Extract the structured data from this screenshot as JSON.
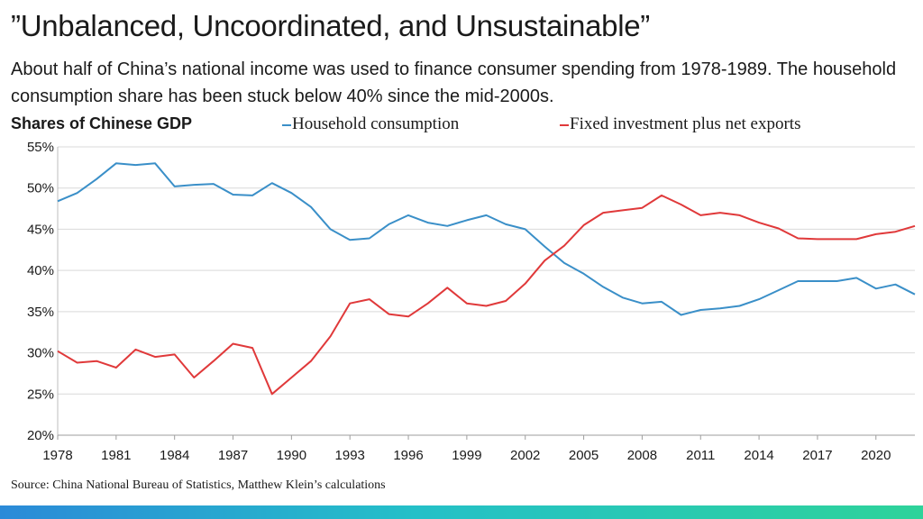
{
  "header": {
    "title": "”Unbalanced, Uncoordinated, and Unsustainable”",
    "subtitle": "About half of China’s national income was used to finance consumer spending from 1978-1989. The household consumption share has been stuck below 40% since the mid-2000s."
  },
  "panel_label": "Shares of Chinese GDP",
  "source": "Source: China National Bureau of Statistics, Matthew Klein’s calculations",
  "colors": {
    "household": "#3a8fc8",
    "investment": "#e0393a",
    "grid": "#d9d9d9",
    "accent_bar_start": "#2b8ad8",
    "accent_bar_end": "#2ed39a"
  },
  "chart_data": {
    "type": "line",
    "title": "Shares of Chinese GDP",
    "xlabel": "",
    "ylabel": "",
    "xlim": [
      1978,
      2022
    ],
    "ylim": [
      20,
      55
    ],
    "grid": true,
    "legend_position": "top",
    "x_ticks": [
      1978,
      1981,
      1984,
      1987,
      1990,
      1993,
      1996,
      1999,
      2002,
      2005,
      2008,
      2011,
      2014,
      2017,
      2020
    ],
    "y_ticks": [
      "20%",
      "25%",
      "30%",
      "35%",
      "40%",
      "45%",
      "50%",
      "55%"
    ],
    "y_tick_values": [
      20,
      25,
      30,
      35,
      40,
      45,
      50,
      55
    ],
    "x": [
      1978,
      1979,
      1980,
      1981,
      1982,
      1983,
      1984,
      1985,
      1986,
      1987,
      1988,
      1989,
      1990,
      1991,
      1992,
      1993,
      1994,
      1995,
      1996,
      1997,
      1998,
      1999,
      2000,
      2001,
      2002,
      2003,
      2004,
      2005,
      2006,
      2007,
      2008,
      2009,
      2010,
      2011,
      2012,
      2013,
      2014,
      2015,
      2016,
      2017,
      2018,
      2019,
      2020,
      2021,
      2022
    ],
    "series": [
      {
        "name": "Household consumption",
        "color": "#3a8fc8",
        "values": [
          48.4,
          49.4,
          51.1,
          53.0,
          52.8,
          53.0,
          50.2,
          50.4,
          50.5,
          49.2,
          49.1,
          50.6,
          49.4,
          47.7,
          45.0,
          43.7,
          43.9,
          45.6,
          46.7,
          45.8,
          45.4,
          46.1,
          46.7,
          45.6,
          45.0,
          42.9,
          40.9,
          39.6,
          38.0,
          36.7,
          36.0,
          36.2,
          34.6,
          35.2,
          35.4,
          35.7,
          36.5,
          37.6,
          38.7,
          38.7,
          38.7,
          39.1,
          37.8,
          38.3,
          37.1
        ]
      },
      {
        "name": "Fixed investment plus net exports",
        "color": "#e0393a",
        "values": [
          30.2,
          28.8,
          29.0,
          28.2,
          30.4,
          29.5,
          29.8,
          27.0,
          29.0,
          31.1,
          30.6,
          25.0,
          27.0,
          29.0,
          32.0,
          36.0,
          36.5,
          34.7,
          34.4,
          36.0,
          37.9,
          36.0,
          35.7,
          36.3,
          38.4,
          41.2,
          43.0,
          45.5,
          47.0,
          47.3,
          47.6,
          49.1,
          48.0,
          46.7,
          47.0,
          46.7,
          45.8,
          45.1,
          43.9,
          43.8,
          43.8,
          43.8,
          44.4,
          44.7,
          45.4
        ]
      }
    ]
  }
}
